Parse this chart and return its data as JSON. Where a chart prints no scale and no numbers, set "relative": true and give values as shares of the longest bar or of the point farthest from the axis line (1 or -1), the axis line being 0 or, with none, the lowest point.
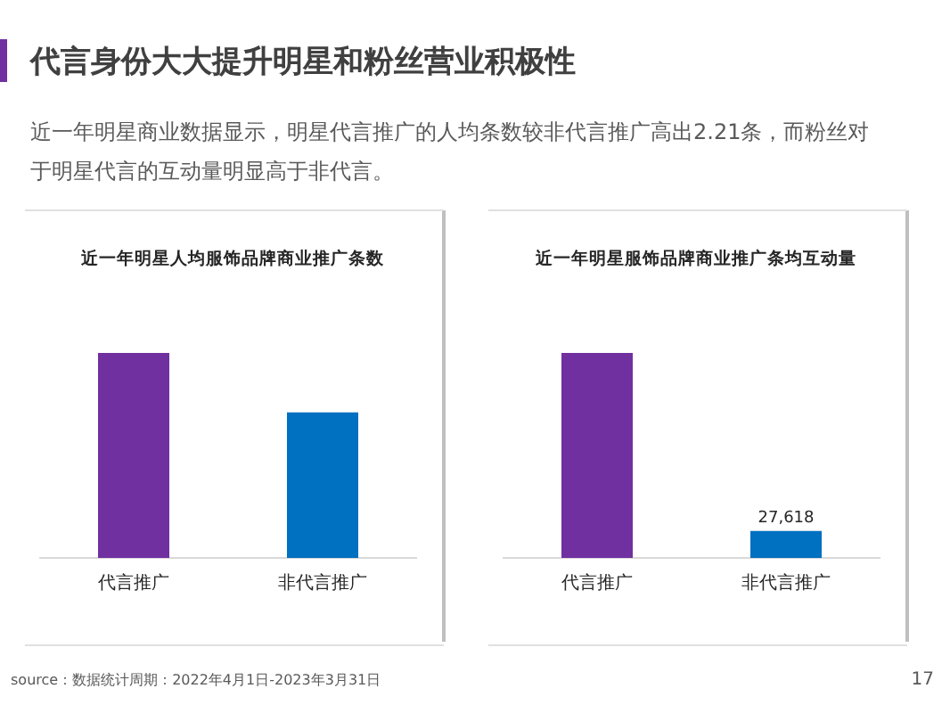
{
  "chart_data": [
    {
      "type": "other",
      "title": "代言身份大大提升明星和粉丝营业积极性",
      "subtitle": "近一年明星商业数据显示，明星代言推广的人均条数较非代言推广高出2.21条，而粉丝对于明星代言的互动量明显高于非代言。",
      "annotations": [
        "source：数据统计周期：2022年4月1日-2023年3月31日",
        "17"
      ]
    },
    {
      "type": "bar",
      "title": "近一年明星人均服饰品牌商业推广条数",
      "categories": [
        "代言推广",
        "非代言推广"
      ],
      "colors": [
        "#7030a0",
        "#0070c0"
      ],
      "values": [
        1,
        0.71
      ],
      "relative": true
    },
    {
      "type": "bar",
      "title": "近一年明星服饰品牌商业推广条均互动量",
      "categories": [
        "代言推广",
        "非代言推广"
      ],
      "colors": [
        "#7030a0",
        "#0070c0"
      ],
      "values": [
        210000,
        27618
      ],
      "value_labels": [
        null,
        "27,618"
      ]
    }
  ]
}
